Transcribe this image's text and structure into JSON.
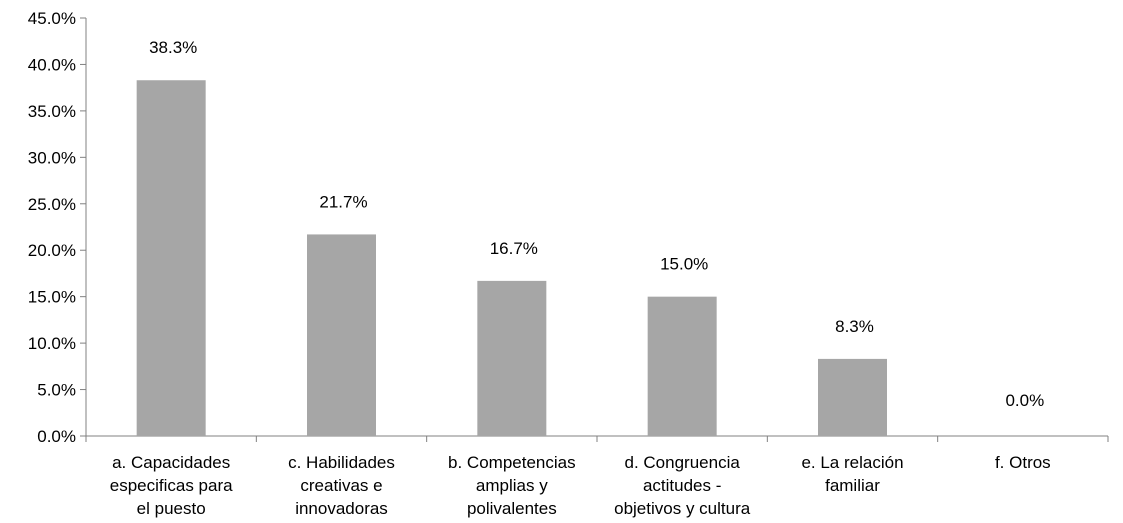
{
  "chart_data": {
    "type": "bar",
    "categories": [
      [
        "a. Capacidades",
        "especificas para",
        "el puesto"
      ],
      [
        "c. Habilidades",
        "creativas e",
        "innovadoras"
      ],
      [
        "b. Competencias",
        "amplias y",
        "polivalentes"
      ],
      [
        "d. Congruencia",
        "actitudes -",
        "objetivos y cultura"
      ],
      [
        "e. La relación",
        "familiar"
      ],
      [
        "f. Otros"
      ]
    ],
    "values": [
      38.3,
      21.7,
      16.7,
      15.0,
      8.3,
      0.0
    ],
    "data_labels": [
      "38.3%",
      "21.7%",
      "16.7%",
      "15.0%",
      "8.3%",
      "0.0%"
    ],
    "y_ticks": [
      "0.0%",
      "5.0%",
      "10.0%",
      "15.0%",
      "20.0%",
      "25.0%",
      "30.0%",
      "35.0%",
      "40.0%",
      "45.0%"
    ],
    "ylim": [
      0,
      45
    ],
    "title": "",
    "xlabel": "",
    "ylabel": "",
    "grid": false,
    "legend": "none",
    "bar_color": "#a6a6a6",
    "axis_color": "#808080"
  }
}
